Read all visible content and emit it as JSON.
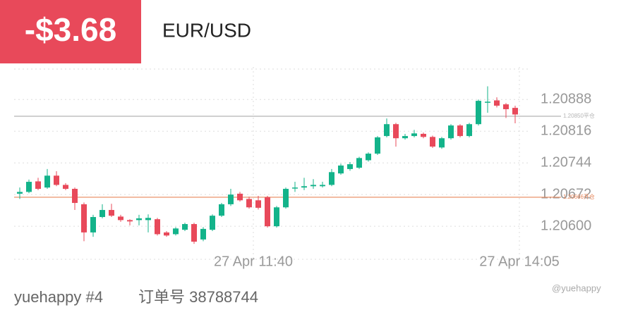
{
  "header": {
    "pnl": "-$3.68",
    "symbol": "EUR/USD"
  },
  "footer": {
    "account": "yuehappy #4",
    "order": "订单号 38788744"
  },
  "watermark": "@yuehappy",
  "chart_data": {
    "type": "candlestick",
    "categories": [
      null,
      null,
      null,
      null,
      null,
      null,
      null,
      null,
      null,
      null,
      null,
      null,
      null,
      null,
      null,
      null,
      null,
      null,
      null,
      null,
      null,
      null,
      null,
      null,
      null,
      "27 Apr 11:40",
      null,
      null,
      null,
      null,
      null,
      null,
      null,
      null,
      null,
      null,
      null,
      null,
      null,
      null,
      null,
      null,
      null,
      null,
      null,
      null,
      null,
      null,
      null,
      null,
      null,
      null,
      null,
      null,
      "27 Apr 14:05"
    ],
    "open": [
      1.20674,
      1.20678,
      1.20702,
      1.20688,
      1.20715,
      1.20694,
      1.20685,
      1.2065,
      1.20586,
      1.20621,
      1.20637,
      1.20622,
      1.20614,
      1.20614,
      1.20614,
      1.20616,
      1.20586,
      1.20582,
      1.20592,
      1.20605,
      1.2057,
      1.20592,
      1.20624,
      1.2065,
      1.20674,
      1.20662,
      1.20659,
      1.20666,
      1.206,
      1.20643,
      1.20686,
      1.20688,
      1.20691,
      1.20691,
      1.20694,
      1.2072,
      1.2073,
      1.20733,
      1.2075,
      1.20765,
      1.20805,
      1.20832,
      1.208,
      1.20805,
      1.2081,
      1.20803,
      1.20779,
      1.208,
      1.20829,
      1.20805,
      1.20832,
      1.20882,
      1.20886,
      1.20877,
      1.20869
    ],
    "high": [
      1.20688,
      1.20706,
      1.2071,
      1.2073,
      1.20725,
      1.20698,
      1.20688,
      1.20654,
      1.20626,
      1.2065,
      1.20651,
      1.20626,
      1.20616,
      1.20626,
      1.20627,
      1.20619,
      1.20589,
      1.20598,
      1.20608,
      1.20608,
      1.20598,
      1.20627,
      1.20653,
      1.20685,
      1.20678,
      1.20667,
      1.20669,
      1.20669,
      1.20646,
      1.20688,
      1.20701,
      1.2071,
      1.20707,
      1.20701,
      1.2073,
      1.20742,
      1.20746,
      1.20758,
      1.20768,
      1.20805,
      1.20845,
      1.20835,
      1.2081,
      1.20819,
      1.20813,
      1.20806,
      1.20803,
      1.20832,
      1.20832,
      1.20835,
      1.20888,
      1.20918,
      1.20893,
      1.2088,
      1.20874
    ],
    "low": [
      1.20662,
      1.20675,
      1.20682,
      1.20685,
      1.20691,
      1.20682,
      1.20637,
      1.20566,
      1.20576,
      1.20618,
      1.20621,
      1.2061,
      1.20602,
      1.20602,
      1.20586,
      1.20579,
      1.20576,
      1.20579,
      1.20589,
      1.2056,
      1.20566,
      1.20589,
      1.20621,
      1.20646,
      1.20656,
      1.2064,
      1.20638,
      1.20597,
      1.20597,
      1.2064,
      1.20678,
      1.20682,
      1.20685,
      1.20688,
      1.20691,
      1.20717,
      1.20726,
      1.2073,
      1.20747,
      1.20762,
      1.20802,
      1.20781,
      1.20797,
      1.20802,
      1.208,
      1.20778,
      1.20776,
      1.20797,
      1.20802,
      1.20802,
      1.20829,
      1.20858,
      1.2087,
      1.20846,
      1.20834
    ],
    "close": [
      1.20678,
      1.20701,
      1.20685,
      1.20715,
      1.20694,
      1.20685,
      1.20653,
      1.20586,
      1.20621,
      1.20637,
      1.20624,
      1.20614,
      1.20611,
      1.20618,
      1.20619,
      1.20582,
      1.20579,
      1.20595,
      1.20605,
      1.20565,
      1.20594,
      1.20624,
      1.2065,
      1.20672,
      1.20659,
      1.20643,
      1.20642,
      1.206,
      1.20643,
      1.20685,
      1.20688,
      1.20691,
      1.20694,
      1.20694,
      1.20723,
      1.20738,
      1.20741,
      1.20755,
      1.20765,
      1.20802,
      1.20832,
      1.208,
      1.20805,
      1.20811,
      1.20803,
      1.20781,
      1.208,
      1.20829,
      1.20805,
      1.20832,
      1.20885,
      1.20883,
      1.20874,
      1.20866,
      1.20854
    ],
    "up_color": "#13b38a",
    "down_color": "#e8495a",
    "ylim": [
      1.20525,
      1.20962
    ],
    "yticks": [
      {
        "value": 1.206,
        "label": "1.20600"
      },
      1.20672,
      1.20744,
      1.20816,
      1.20888
    ],
    "grid": true,
    "reference_lines": [
      {
        "value": 1.2085,
        "label": "1.20850平仓",
        "color": "#b5b5b5"
      },
      {
        "value": 1.20666,
        "label": "1.20666开仓",
        "color": "#e8865a"
      }
    ]
  }
}
